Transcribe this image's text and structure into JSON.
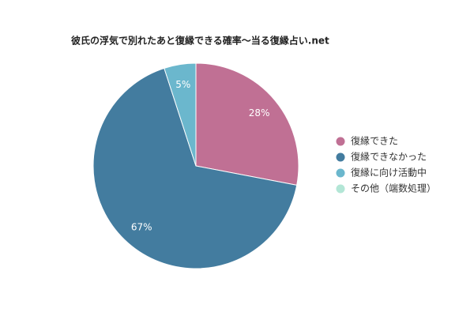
{
  "chart_data": {
    "type": "pie",
    "title": "彼氏の浮気で別れたあと復縁できる確率〜当る復縁占い.net",
    "categories": [
      "復縁できた",
      "復縁できなかった",
      "復縁に向け活動中",
      "その他（端数処理）"
    ],
    "values": [
      28,
      67,
      5,
      0
    ],
    "value_labels": [
      "28%",
      "67%",
      "5%",
      null
    ],
    "colors": [
      "#c07094",
      "#437c9f",
      "#6bb7cd",
      "#b3e6d6"
    ],
    "legend": "right"
  }
}
